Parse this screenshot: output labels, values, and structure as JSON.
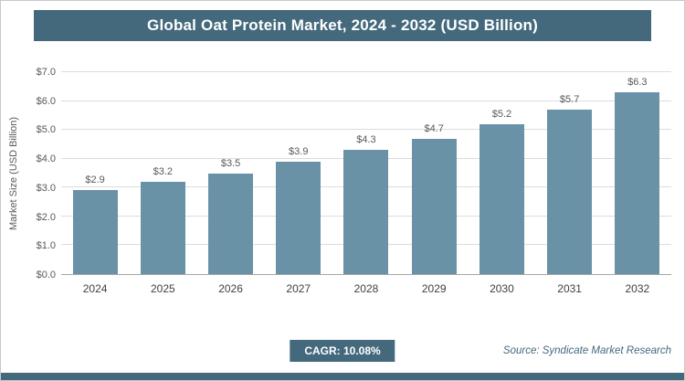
{
  "title": "Global Oat Protein Market, 2024 - 2032 (USD Billion)",
  "chart_data": {
    "type": "bar",
    "title": "Global Oat Protein Market, 2024 - 2032 (USD Billion)",
    "categories": [
      "2024",
      "2025",
      "2026",
      "2027",
      "2028",
      "2029",
      "2030",
      "2031",
      "2032"
    ],
    "values": [
      2.9,
      3.2,
      3.5,
      3.9,
      4.3,
      4.7,
      5.2,
      5.7,
      6.3
    ],
    "value_labels": [
      "$2.9",
      "$3.2",
      "$3.5",
      "$3.9",
      "$4.3",
      "$4.7",
      "$5.2",
      "$5.7",
      "$6.3"
    ],
    "xlabel": "",
    "ylabel": "Market Size (USD Billion)",
    "ylim": [
      0,
      7
    ],
    "ytick_labels": [
      "$0.0",
      "$1.0",
      "$2.0",
      "$3.0",
      "$4.0",
      "$5.0",
      "$6.0",
      "$7.0"
    ],
    "grid": "horizontal",
    "legend": "none",
    "bar_color": "#6A92A6",
    "value_prefix": "$"
  },
  "footer": {
    "cagr_label": "CAGR: 10.08%",
    "source": "Source: Syndicate Market Research"
  },
  "colors": {
    "header_bg": "#44697D",
    "bar_color": "#6A92A6",
    "accent_text": "#44697D"
  }
}
